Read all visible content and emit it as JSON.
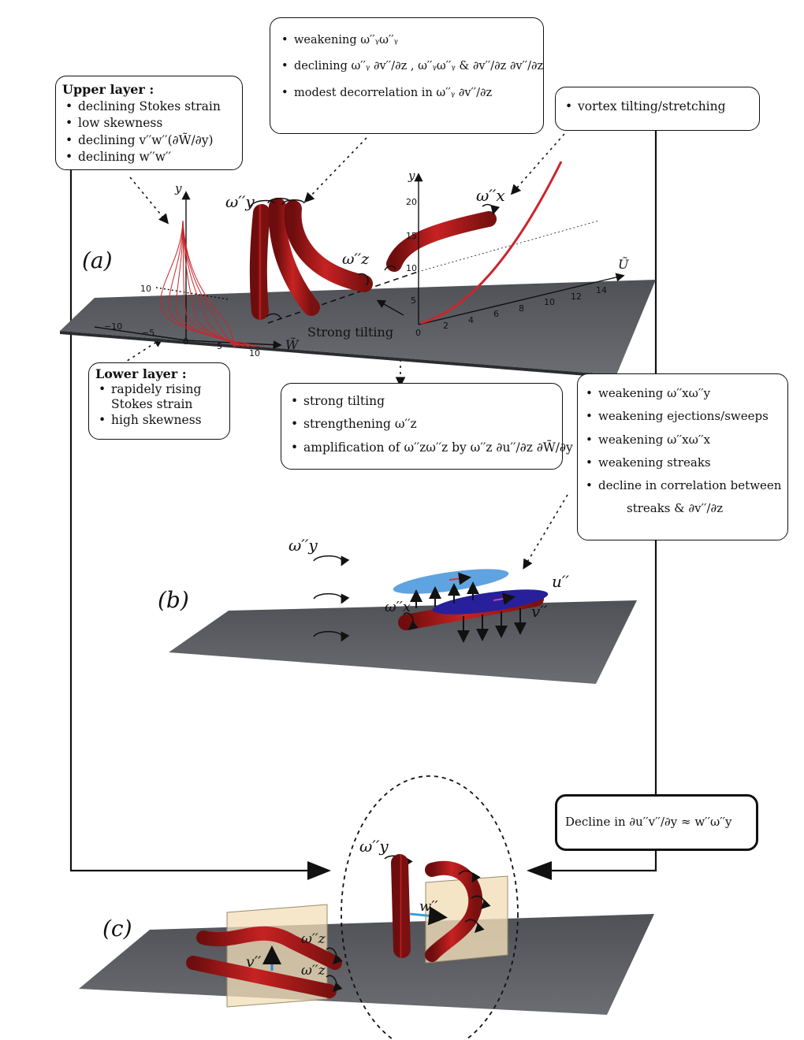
{
  "boxes": {
    "upper_layer": {
      "title": "Upper layer :",
      "items": [
        "declining Stokes strain",
        "low skewness",
        "declining v′′w′′(∂W̃/∂y)",
        "declining w′′w′′"
      ]
    },
    "top_center": {
      "items": [
        "weakening ω′′ᵧω′′ᵧ",
        "declining ω′′ᵧ ∂v′′/∂z ,  ω′′ᵧω′′ᵧ  &  ∂v′′/∂z ∂v′′/∂z",
        "modest decorrelation in ω′′ᵧ ∂v′′/∂z"
      ]
    },
    "vortex_tilting": {
      "items": [
        "vortex tilting/stretching"
      ]
    },
    "lower_layer": {
      "title": "Lower layer :",
      "items": [
        "rapidely rising",
        "Stokes strain",
        "high skewness"
      ]
    },
    "strong_tilting": {
      "items": [
        "strong tilting",
        "strengthening ω′′z",
        "amplification of ω′′zω′′z by ω′′z ∂u′′/∂z ∂W̃/∂y"
      ]
    },
    "weakening_list": {
      "items": [
        "weakening ω′′xω′′y",
        "weakening ejections/sweeps",
        "weakening ω′′xω′′x",
        "weakening streaks",
        "decline in correlation between",
        "streaks  &  ∂v′′/∂z"
      ]
    },
    "decline_box": {
      "text": "Decline in  ∂u′′v′′/∂y ≈ w′′ω′′y"
    }
  },
  "panels": {
    "a": "(a)",
    "b": "(b)",
    "c": "(c)"
  },
  "panel_a": {
    "annotation": "Strong tilting",
    "axes": {
      "y": "y",
      "U": "Ũ",
      "W": "W̃"
    },
    "left_ticks_W": [
      "−10",
      "−5",
      "0",
      "5",
      "10"
    ],
    "left_tick_y": "10",
    "right_ticks_y": [
      "20",
      "15",
      "10",
      "5"
    ],
    "right_ticks_U": [
      "0",
      "2",
      "4",
      "6",
      "8",
      "10",
      "12",
      "14"
    ],
    "labels": {
      "omega_y": "ω′′y",
      "omega_z": "ω′′z",
      "omega_x": "ω′′x"
    }
  },
  "panel_b": {
    "labels": {
      "omega_y": "ω′′y",
      "omega_x": "ω′′x",
      "u": "u′′",
      "v": "v′′"
    }
  },
  "panel_c": {
    "labels": {
      "omega_y": "ω′′y",
      "w": "w′′",
      "v": "v′′",
      "omega_z1": "ω′′z",
      "omega_z2": "ω′′z"
    }
  },
  "colors": {
    "plate": "#5e6065",
    "vortex": "#b01818",
    "streak_high": "#5fa3e0",
    "streak_low": "#27209a",
    "sheet": "#f3dfb9"
  }
}
